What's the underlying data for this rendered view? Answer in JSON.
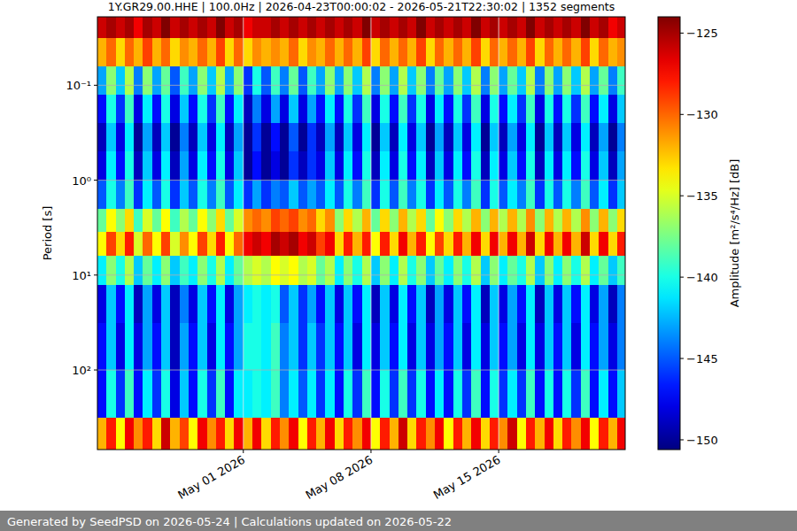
{
  "chart_data": {
    "type": "heatmap",
    "title": "1Y.GR29.00.HHE | 100.0Hz | 2026-04-23T00:00:02 - 2026-05-21T22:30:02 | 1352 segments",
    "y_label": "Period [s]",
    "colorbar_label": "Amplitude [m²/s⁴/Hz] [dB]",
    "footer": "Generated by SeedPSD on 2026-05-24 | Calculations updated on 2026-05-22",
    "log": "y",
    "grid": true,
    "xlim": [
      "2026-04-23T00:00:02",
      "2026-05-21T22:30:02"
    ],
    "xticks": [
      {
        "value": "2026-05-01T00:00:00",
        "label": "May 01 2026"
      },
      {
        "value": "2026-05-08T00:00:00",
        "label": "May 08 2026"
      },
      {
        "value": "2026-05-15T00:00:00",
        "label": "May 15 2026"
      }
    ],
    "ylim": [
      0.019,
      690
    ],
    "yticks": [
      {
        "value": 0.1,
        "label": "10⁻¹"
      },
      {
        "value": 1,
        "label": "10⁰"
      },
      {
        "value": 10,
        "label": "10¹"
      },
      {
        "value": 100,
        "label": "10²"
      }
    ],
    "clim": [
      -150.6,
      -124
    ],
    "cticks": [
      {
        "value": -125,
        "label": "−125"
      },
      {
        "value": -130,
        "label": "−130"
      },
      {
        "value": -135,
        "label": "−135"
      },
      {
        "value": -140,
        "label": "−140"
      },
      {
        "value": -145,
        "label": "−145"
      },
      {
        "value": -150,
        "label": "−150"
      }
    ],
    "x_edges": [
      "2026-04-23T00:00:02",
      "2026-04-23T12:00:00",
      "2026-04-24T00:00:00",
      "2026-04-24T12:00:00",
      "2026-04-25T00:00:00",
      "2026-04-25T12:00:00",
      "2026-04-26T00:00:00",
      "2026-04-26T12:00:00",
      "2026-04-27T00:00:00",
      "2026-04-27T12:00:00",
      "2026-04-28T00:00:00",
      "2026-04-28T12:00:00",
      "2026-04-29T00:00:00",
      "2026-04-29T12:00:00",
      "2026-04-30T00:00:00",
      "2026-04-30T12:00:00",
      "2026-05-01T00:00:00",
      "2026-05-01T12:00:00",
      "2026-05-02T00:00:00",
      "2026-05-02T12:00:00",
      "2026-05-03T00:00:00",
      "2026-05-03T12:00:00",
      "2026-05-04T00:00:00",
      "2026-05-04T12:00:00",
      "2026-05-05T00:00:00",
      "2026-05-05T12:00:00",
      "2026-05-06T00:00:00",
      "2026-05-06T12:00:00",
      "2026-05-07T00:00:00",
      "2026-05-07T12:00:00",
      "2026-05-08T00:00:00",
      "2026-05-08T12:00:00",
      "2026-05-09T00:00:00",
      "2026-05-09T12:00:00",
      "2026-05-10T00:00:00",
      "2026-05-10T12:00:00",
      "2026-05-11T00:00:00",
      "2026-05-11T12:00:00",
      "2026-05-12T00:00:00",
      "2026-05-12T12:00:00",
      "2026-05-13T00:00:00",
      "2026-05-13T12:00:00",
      "2026-05-14T00:00:00",
      "2026-05-14T12:00:00",
      "2026-05-15T00:00:00",
      "2026-05-15T12:00:00",
      "2026-05-16T00:00:00",
      "2026-05-16T12:00:00",
      "2026-05-17T00:00:00",
      "2026-05-17T12:00:00",
      "2026-05-18T00:00:00",
      "2026-05-18T12:00:00",
      "2026-05-19T00:00:00",
      "2026-05-19T12:00:00",
      "2026-05-20T00:00:00",
      "2026-05-20T12:00:00",
      "2026-05-21T00:00:00",
      "2026-05-21T12:00:00",
      "2026-05-21T22:30:02"
    ],
    "y_edges": [
      0.019,
      0.032,
      0.063,
      0.126,
      0.25,
      0.5,
      1,
      2,
      3.5,
      6.3,
      12.6,
      32,
      100,
      316,
      690
    ],
    "cells": [
      [
        -126,
        -125,
        -126,
        -125,
        -127,
        -125,
        -126,
        -124,
        -126,
        -125,
        -126,
        -125,
        -126,
        -124,
        -126,
        -125,
        -127,
        -126,
        -126,
        -125,
        -126,
        -125,
        -126,
        -125,
        -126,
        -125,
        -126,
        -125,
        -126,
        -124,
        -126,
        -125,
        -126,
        -125,
        -126,
        -124,
        -126,
        -125,
        -126,
        -125,
        -126,
        -124,
        -126,
        -125,
        -126,
        -125,
        -126,
        -124,
        -126,
        -125,
        -126,
        -125,
        -126,
        -124,
        -126,
        -125,
        -127,
        -126
      ],
      [
        -132,
        -130,
        -133,
        -130,
        -132,
        -129,
        -132,
        -130,
        -133,
        -131,
        -132,
        -130,
        -132,
        -129,
        -133,
        -130,
        -133,
        -131,
        -132,
        -131,
        -132,
        -130,
        -133,
        -131,
        -132,
        -130,
        -132,
        -130,
        -132,
        -129,
        -133,
        -130,
        -132,
        -130,
        -132,
        -129,
        -133,
        -130,
        -132,
        -130,
        -132,
        -129,
        -133,
        -130,
        -132,
        -130,
        -132,
        -129,
        -133,
        -130,
        -132,
        -130,
        -132,
        -129,
        -133,
        -130,
        -132,
        -131
      ],
      [
        -143,
        -137,
        -142,
        -136,
        -144,
        -137,
        -143,
        -138,
        -145,
        -139,
        -143,
        -137,
        -142,
        -136,
        -143,
        -137,
        -146,
        -140,
        -145,
        -139,
        -144,
        -138,
        -145,
        -139,
        -143,
        -137,
        -143,
        -137,
        -142,
        -136,
        -144,
        -137,
        -143,
        -136,
        -142,
        -137,
        -144,
        -138,
        -143,
        -137,
        -142,
        -136,
        -144,
        -137,
        -143,
        -138,
        -142,
        -136,
        -144,
        -137,
        -143,
        -137,
        -142,
        -136,
        -143,
        -138,
        -144,
        -139
      ],
      [
        -147,
        -140,
        -146,
        -139,
        -148,
        -141,
        -147,
        -140,
        -148,
        -142,
        -147,
        -140,
        -146,
        -139,
        -147,
        -141,
        -149,
        -144,
        -148,
        -143,
        -148,
        -142,
        -148,
        -143,
        -147,
        -141,
        -147,
        -140,
        -146,
        -139,
        -148,
        -140,
        -147,
        -139,
        -146,
        -140,
        -148,
        -141,
        -147,
        -140,
        -146,
        -139,
        -148,
        -140,
        -147,
        -141,
        -146,
        -139,
        -148,
        -140,
        -147,
        -140,
        -146,
        -139,
        -147,
        -141,
        -148,
        -142
      ],
      [
        -149,
        -142,
        -148,
        -141,
        -150,
        -143,
        -149,
        -142,
        -150,
        -144,
        -149,
        -142,
        -148,
        -141,
        -149,
        -143,
        -150,
        -146,
        -150,
        -147,
        -150,
        -145,
        -150,
        -146,
        -149,
        -143,
        -149,
        -142,
        -148,
        -141,
        -150,
        -142,
        -149,
        -141,
        -148,
        -142,
        -150,
        -143,
        -149,
        -142,
        -148,
        -141,
        -150,
        -142,
        -149,
        -143,
        -148,
        -141,
        -150,
        -142,
        -149,
        -142,
        -148,
        -141,
        -149,
        -143,
        -150,
        -144
      ],
      [
        -148,
        -141,
        -147,
        -140,
        -149,
        -142,
        -148,
        -141,
        -149,
        -143,
        -148,
        -141,
        -147,
        -140,
        -148,
        -142,
        -150,
        -147,
        -150,
        -148,
        -150,
        -146,
        -149,
        -146,
        -148,
        -142,
        -148,
        -141,
        -147,
        -140,
        -149,
        -141,
        -148,
        -140,
        -147,
        -141,
        -149,
        -142,
        -148,
        -141,
        -147,
        -140,
        -149,
        -141,
        -148,
        -142,
        -147,
        -140,
        -149,
        -141,
        -148,
        -141,
        -147,
        -140,
        -148,
        -142,
        -149,
        -143
      ],
      [
        -145,
        -140,
        -144,
        -139,
        -146,
        -141,
        -145,
        -140,
        -146,
        -142,
        -145,
        -140,
        -144,
        -139,
        -145,
        -141,
        -146,
        -143,
        -146,
        -144,
        -145,
        -142,
        -145,
        -143,
        -145,
        -141,
        -145,
        -140,
        -144,
        -139,
        -146,
        -140,
        -145,
        -139,
        -144,
        -140,
        -146,
        -141,
        -145,
        -140,
        -144,
        -139,
        -146,
        -140,
        -145,
        -141,
        -144,
        -139,
        -146,
        -140,
        -145,
        -140,
        -144,
        -139,
        -145,
        -141,
        -146,
        -142
      ],
      [
        -138,
        -134,
        -137,
        -133,
        -139,
        -135,
        -138,
        -134,
        -139,
        -136,
        -138,
        -134,
        -137,
        -133,
        -138,
        -135,
        -131,
        -130,
        -131,
        -129,
        -130,
        -129,
        -131,
        -130,
        -133,
        -131,
        -137,
        -133,
        -136,
        -132,
        -138,
        -133,
        -137,
        -132,
        -136,
        -133,
        -138,
        -134,
        -137,
        -133,
        -136,
        -132,
        -137,
        -132,
        -136,
        -132,
        -136,
        -131,
        -137,
        -132,
        -136,
        -132,
        -136,
        -131,
        -137,
        -132,
        -137,
        -133
      ],
      [
        -134,
        -129,
        -133,
        -128,
        -135,
        -130,
        -134,
        -129,
        -135,
        -131,
        -134,
        -129,
        -133,
        -128,
        -134,
        -130,
        -127,
        -126,
        -127,
        -125,
        -126,
        -125,
        -127,
        -126,
        -129,
        -127,
        -133,
        -128,
        -132,
        -128,
        -134,
        -128,
        -133,
        -127,
        -132,
        -128,
        -134,
        -129,
        -133,
        -128,
        -132,
        -127,
        -133,
        -127,
        -132,
        -127,
        -132,
        -126,
        -133,
        -127,
        -132,
        -127,
        -132,
        -126,
        -133,
        -127,
        -133,
        -128
      ],
      [
        -141,
        -137,
        -140,
        -136,
        -142,
        -138,
        -141,
        -137,
        -142,
        -139,
        -141,
        -137,
        -140,
        -136,
        -141,
        -138,
        -136,
        -135,
        -136,
        -134,
        -135,
        -134,
        -136,
        -135,
        -138,
        -136,
        -141,
        -137,
        -140,
        -136,
        -142,
        -137,
        -141,
        -136,
        -140,
        -137,
        -142,
        -138,
        -141,
        -137,
        -140,
        -136,
        -142,
        -137,
        -141,
        -138,
        -140,
        -136,
        -142,
        -137,
        -141,
        -137,
        -140,
        -136,
        -141,
        -138,
        -142,
        -139
      ],
      [
        -148,
        -142,
        -147,
        -141,
        -149,
        -143,
        -148,
        -142,
        -149,
        -144,
        -148,
        -142,
        -147,
        -141,
        -148,
        -143,
        -141,
        -140,
        -141,
        -140,
        -145,
        -142,
        -146,
        -143,
        -147,
        -142,
        -148,
        -142,
        -147,
        -141,
        -149,
        -142,
        -148,
        -141,
        -147,
        -142,
        -149,
        -143,
        -148,
        -142,
        -147,
        -141,
        -149,
        -142,
        -148,
        -143,
        -147,
        -141,
        -149,
        -142,
        -148,
        -142,
        -147,
        -141,
        -148,
        -143,
        -149,
        -144
      ],
      [
        -147,
        -142,
        -148,
        -141,
        -148,
        -143,
        -147,
        -142,
        -149,
        -143,
        -147,
        -142,
        -148,
        -141,
        -147,
        -143,
        -140,
        -140,
        -141,
        -139,
        -144,
        -142,
        -146,
        -142,
        -146,
        -142,
        -147,
        -142,
        -148,
        -141,
        -148,
        -142,
        -147,
        -141,
        -148,
        -142,
        -148,
        -143,
        -147,
        -142,
        -148,
        -141,
        -148,
        -142,
        -147,
        -143,
        -148,
        -141,
        -148,
        -142,
        -147,
        -142,
        -148,
        -141,
        -147,
        -143,
        -148,
        -144
      ],
      [
        -147,
        -140,
        -146,
        -139,
        -147,
        -141,
        -146,
        -140,
        -148,
        -142,
        -147,
        -140,
        -146,
        -139,
        -147,
        -141,
        -141,
        -140,
        -141,
        -139,
        -144,
        -141,
        -145,
        -141,
        -146,
        -141,
        -147,
        -140,
        -146,
        -139,
        -147,
        -140,
        -146,
        -139,
        -146,
        -140,
        -147,
        -141,
        -147,
        -140,
        -146,
        -139,
        -147,
        -140,
        -146,
        -141,
        -146,
        -139,
        -147,
        -140,
        -147,
        -140,
        -146,
        -139,
        -147,
        -141,
        -147,
        -142
      ],
      [
        -132,
        -128,
        -134,
        -127,
        -131,
        -128,
        -133,
        -126,
        -132,
        -129,
        -134,
        -127,
        -131,
        -128,
        -133,
        -127,
        -132,
        -127,
        -133,
        -128,
        -131,
        -127,
        -134,
        -128,
        -132,
        -127,
        -133,
        -128,
        -131,
        -127,
        -134,
        -128,
        -132,
        -126,
        -133,
        -128,
        -131,
        -127,
        -134,
        -128,
        -132,
        -127,
        -133,
        -128,
        -131,
        -126,
        -134,
        -128,
        -132,
        -127,
        -133,
        -128,
        -131,
        -127,
        -134,
        -128,
        -132,
        -127
      ]
    ]
  }
}
